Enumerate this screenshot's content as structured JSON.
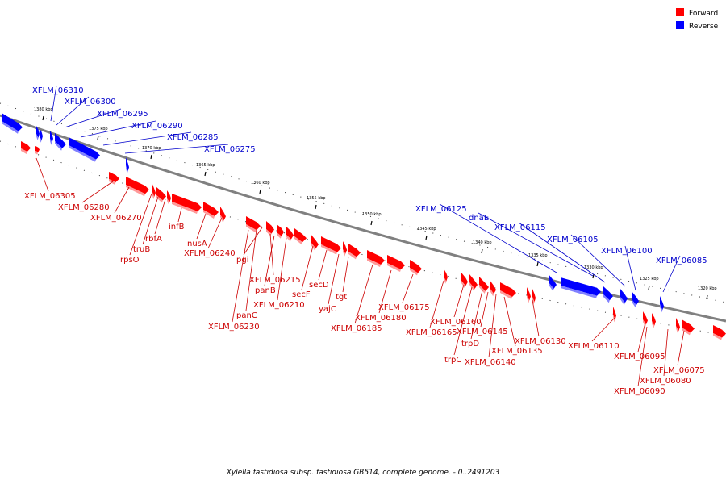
{
  "caption": "Xylella fastidiosa subsp. fastidiosa GB514, complete genome. - 0..2491203",
  "legend": [
    {
      "label": "Forward",
      "color": "#ff0000"
    },
    {
      "label": "Reverse",
      "color": "#0000ff"
    }
  ],
  "colors": {
    "forward": "#ff0000",
    "reverse": "#0000ff",
    "forward_label": "#cc0000",
    "reverse_label": "#0000cc",
    "backbone": "#808080"
  },
  "scale": {
    "ticks": [
      "1380 kbp",
      "1375 kbp",
      "1370 kbp",
      "1365 kbp",
      "1360 kbp",
      "1355 kbp",
      "1350 kbp",
      "1345 kbp",
      "1340 kbp",
      "1335 kbp",
      "1330 kbp",
      "1325 kbp",
      "1320 kbp"
    ]
  },
  "genes_reverse": [
    "XFLM_06310",
    "XFLM_06300",
    "XFLM_06295",
    "XFLM_06290",
    "XFLM_06285",
    "XFLM_06275",
    "XFLM_06125",
    "dnaE",
    "XFLM_06115",
    "XFLM_06105",
    "XFLM_06100",
    "XFLM_06085"
  ],
  "genes_forward": [
    "XFLM_06305",
    "XFLM_06280",
    "XFLM_06270",
    "rpsO",
    "truB",
    "rbfA",
    "infB",
    "nusA",
    "XFLM_06240",
    "pgi",
    "XFLM_06230",
    "panC",
    "XFLM_06210",
    "panB",
    "XFLM_06215",
    "secF",
    "secD",
    "yajC",
    "tgt",
    "XFLM_06185",
    "XFLM_06180",
    "XFLM_06175",
    "XFLM_06165",
    "XFLM_06160",
    "trpC",
    "trpD",
    "XFLM_06145",
    "XFLM_06140",
    "XFLM_06135",
    "XFLM_06130",
    "XFLM_06110",
    "XFLM_06095",
    "XFLM_06090",
    "XFLM_06080",
    "XFLM_06075"
  ]
}
